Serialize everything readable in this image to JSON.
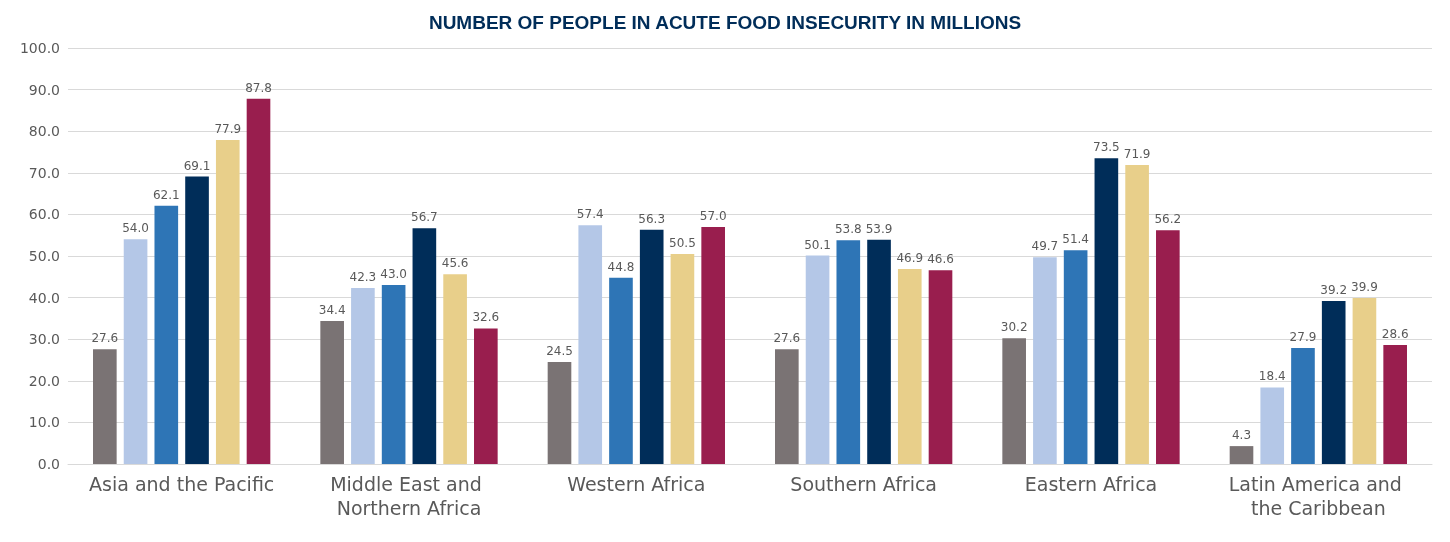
{
  "chart_data": {
    "type": "bar",
    "title": "NUMBER OF PEOPLE IN ACUTE FOOD INSECURITY IN MILLIONS",
    "categories": [
      "Asia and the Pacific",
      "Middle East and Northern Africa",
      "Western Africa",
      "Southern Africa",
      "Eastern Africa",
      "Latin America and the Caribbean"
    ],
    "series": [
      {
        "color": "#7a7374",
        "values": [
          27.6,
          34.4,
          24.5,
          27.6,
          30.2,
          4.3
        ],
        "value_labels": [
          "27.6",
          "34.4",
          "24.5",
          "27.6",
          "30.2",
          "4.3"
        ]
      },
      {
        "color": "#b4c7e7",
        "values": [
          54.0,
          42.3,
          57.4,
          50.1,
          49.7,
          18.4
        ],
        "value_labels": [
          "54.0",
          "42.3",
          "57.4",
          "50.1",
          "49.7",
          "18.4"
        ]
      },
      {
        "color": "#2e75b6",
        "values": [
          62.1,
          43.0,
          44.8,
          53.8,
          51.4,
          27.9
        ],
        "value_labels": [
          "62.1",
          "43.0",
          "44.8",
          "53.8",
          "51.4",
          "27.9"
        ]
      },
      {
        "color": "#002d59",
        "values": [
          69.1,
          56.7,
          56.3,
          53.9,
          73.5,
          39.2
        ],
        "value_labels": [
          "69.1",
          "56.7",
          "56.3",
          "53.9",
          "73.5",
          "39.2"
        ]
      },
      {
        "color": "#e8cf8a",
        "values": [
          77.9,
          45.6,
          50.5,
          46.9,
          71.9,
          39.9
        ],
        "value_labels": [
          "77.9",
          "45.6",
          "50.5",
          "46.9",
          "71.9",
          "39.9"
        ]
      },
      {
        "color": "#991e4e",
        "values": [
          87.8,
          32.6,
          57.0,
          46.6,
          56.2,
          28.6
        ],
        "value_labels": [
          "87.8",
          "32.6",
          "57.0",
          "46.6",
          "56.2",
          "28.6"
        ]
      }
    ],
    "ylim": [
      0,
      100
    ],
    "yticks": [
      {
        "value": 0,
        "label": "0.0"
      },
      {
        "value": 10,
        "label": "10.0"
      },
      {
        "value": 20,
        "label": "20.0"
      },
      {
        "value": 30,
        "label": "30.0"
      },
      {
        "value": 40,
        "label": "40.0"
      },
      {
        "value": 50,
        "label": "50.0"
      },
      {
        "value": 60,
        "label": "60.0"
      },
      {
        "value": 70,
        "label": "70.0"
      },
      {
        "value": 80,
        "label": "80.0"
      },
      {
        "value": 90,
        "label": "90.0"
      },
      {
        "value": 100,
        "label": "100.0"
      }
    ],
    "grid": "y"
  }
}
